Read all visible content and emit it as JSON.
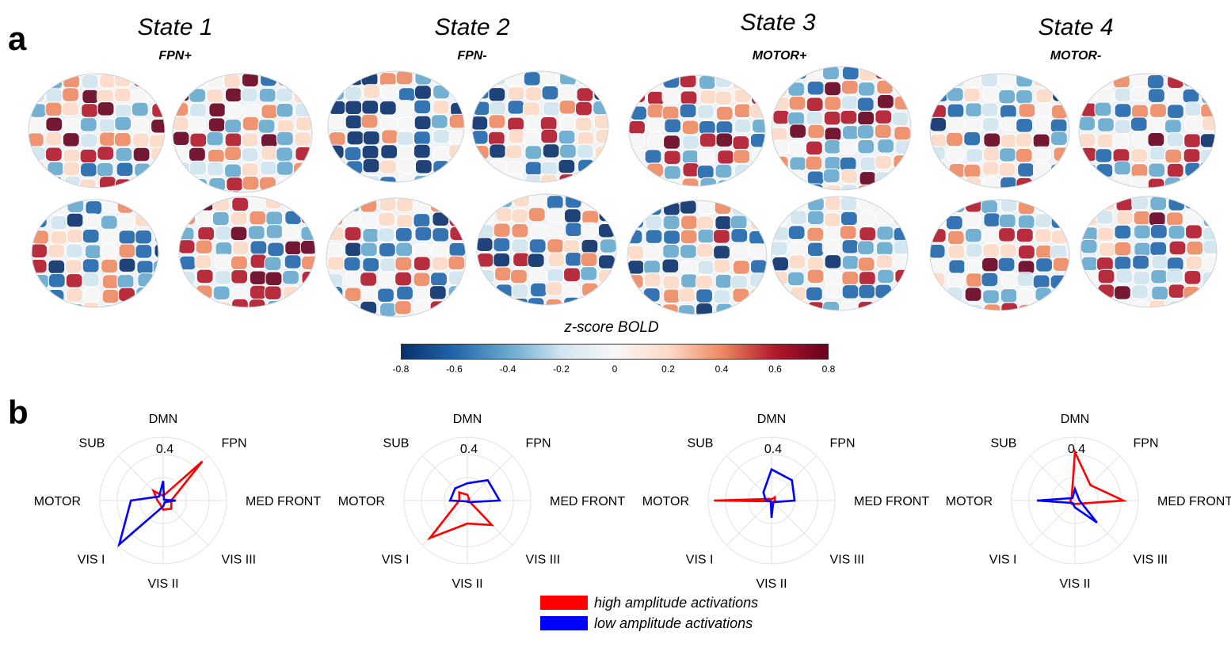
{
  "panel_labels": {
    "a": "a",
    "b": "b"
  },
  "states": [
    {
      "title": "State 1",
      "subtitle": "FPN+"
    },
    {
      "title": "State 2",
      "subtitle": "FPN-"
    },
    {
      "title": "State 3",
      "subtitle": "MOTOR+"
    },
    {
      "title": "State 4",
      "subtitle": "MOTOR-"
    }
  ],
  "colorbar": {
    "title": "z-score BOLD",
    "ticks": [
      "-0.8",
      "-0.6",
      "-0.4",
      "-0.2",
      "0",
      "0.2",
      "0.4",
      "0.6",
      "0.8"
    ],
    "range": [
      -0.8,
      0.8
    ],
    "colors": [
      "#08306b",
      "#2166ac",
      "#67a9cf",
      "#d1e5f0",
      "#f7f7f7",
      "#fddbc7",
      "#ef8a62",
      "#b2182b",
      "#67001f"
    ]
  },
  "chart_data": [
    {
      "type": "radar",
      "axes": [
        "DMN",
        "FPN",
        "MED FRONT",
        "VIS III",
        "VIS II",
        "VIS I",
        "MOTOR",
        "SUB"
      ],
      "rmax": 0.55,
      "ring_label": "0.4",
      "series": [
        {
          "name": "high amplitude activations",
          "color": "#ff0000",
          "values": [
            0.04,
            0.48,
            0.07,
            0.1,
            0.08,
            0.04,
            0.05,
            0.12
          ]
        },
        {
          "name": "low amplitude activations",
          "color": "#0000ff",
          "values": [
            0.17,
            0.01,
            0.11,
            0.02,
            0.05,
            0.54,
            0.28,
            0.05
          ]
        }
      ]
    },
    {
      "type": "radar",
      "axes": [
        "DMN",
        "FPN",
        "MED FRONT",
        "VIS III",
        "VIS II",
        "VIS I",
        "MOTOR",
        "SUB"
      ],
      "rmax": 0.55,
      "ring_label": "0.4",
      "series": [
        {
          "name": "high amplitude activations",
          "color": "#ff0000",
          "values": [
            0.05,
            0.02,
            0.01,
            0.3,
            0.2,
            0.46,
            0.07,
            0.1
          ]
        },
        {
          "name": "low amplitude activations",
          "color": "#0000ff",
          "values": [
            0.15,
            0.25,
            0.28,
            0.02,
            0.01,
            0.01,
            0.15,
            0.15
          ]
        }
      ]
    },
    {
      "type": "radar",
      "axes": [
        "DMN",
        "FPN",
        "MED FRONT",
        "VIS III",
        "VIS II",
        "VIS I",
        "MOTOR",
        "SUB"
      ],
      "rmax": 0.55,
      "ring_label": "0.4",
      "series": [
        {
          "name": "high amplitude activations",
          "color": "#ff0000",
          "values": [
            0.01,
            0.04,
            0.03,
            0.02,
            0.02,
            0.01,
            0.5,
            0.02
          ]
        },
        {
          "name": "low amplitude activations",
          "color": "#0000ff",
          "values": [
            0.27,
            0.25,
            0.2,
            0.02,
            0.15,
            0.01,
            0.05,
            0.1
          ]
        }
      ]
    },
    {
      "type": "radar",
      "axes": [
        "DMN",
        "FPN",
        "MED FRONT",
        "VIS III",
        "VIS II",
        "VIS I",
        "MOTOR",
        "SUB"
      ],
      "rmax": 0.55,
      "ring_label": "0.4",
      "series": [
        {
          "name": "high amplitude activations",
          "color": "#ff0000",
          "values": [
            0.42,
            0.19,
            0.42,
            0.04,
            0.03,
            0.04,
            0.04,
            0.04
          ]
        },
        {
          "name": "low amplitude activations",
          "color": "#0000ff",
          "values": [
            0.1,
            0.04,
            0.04,
            0.27,
            0.06,
            0.03,
            0.33,
            0.03
          ]
        }
      ]
    }
  ],
  "legend": [
    {
      "label": "high amplitude activations",
      "color": "#ff0000"
    },
    {
      "label": "low amplitude activations",
      "color": "#0000ff"
    }
  ]
}
